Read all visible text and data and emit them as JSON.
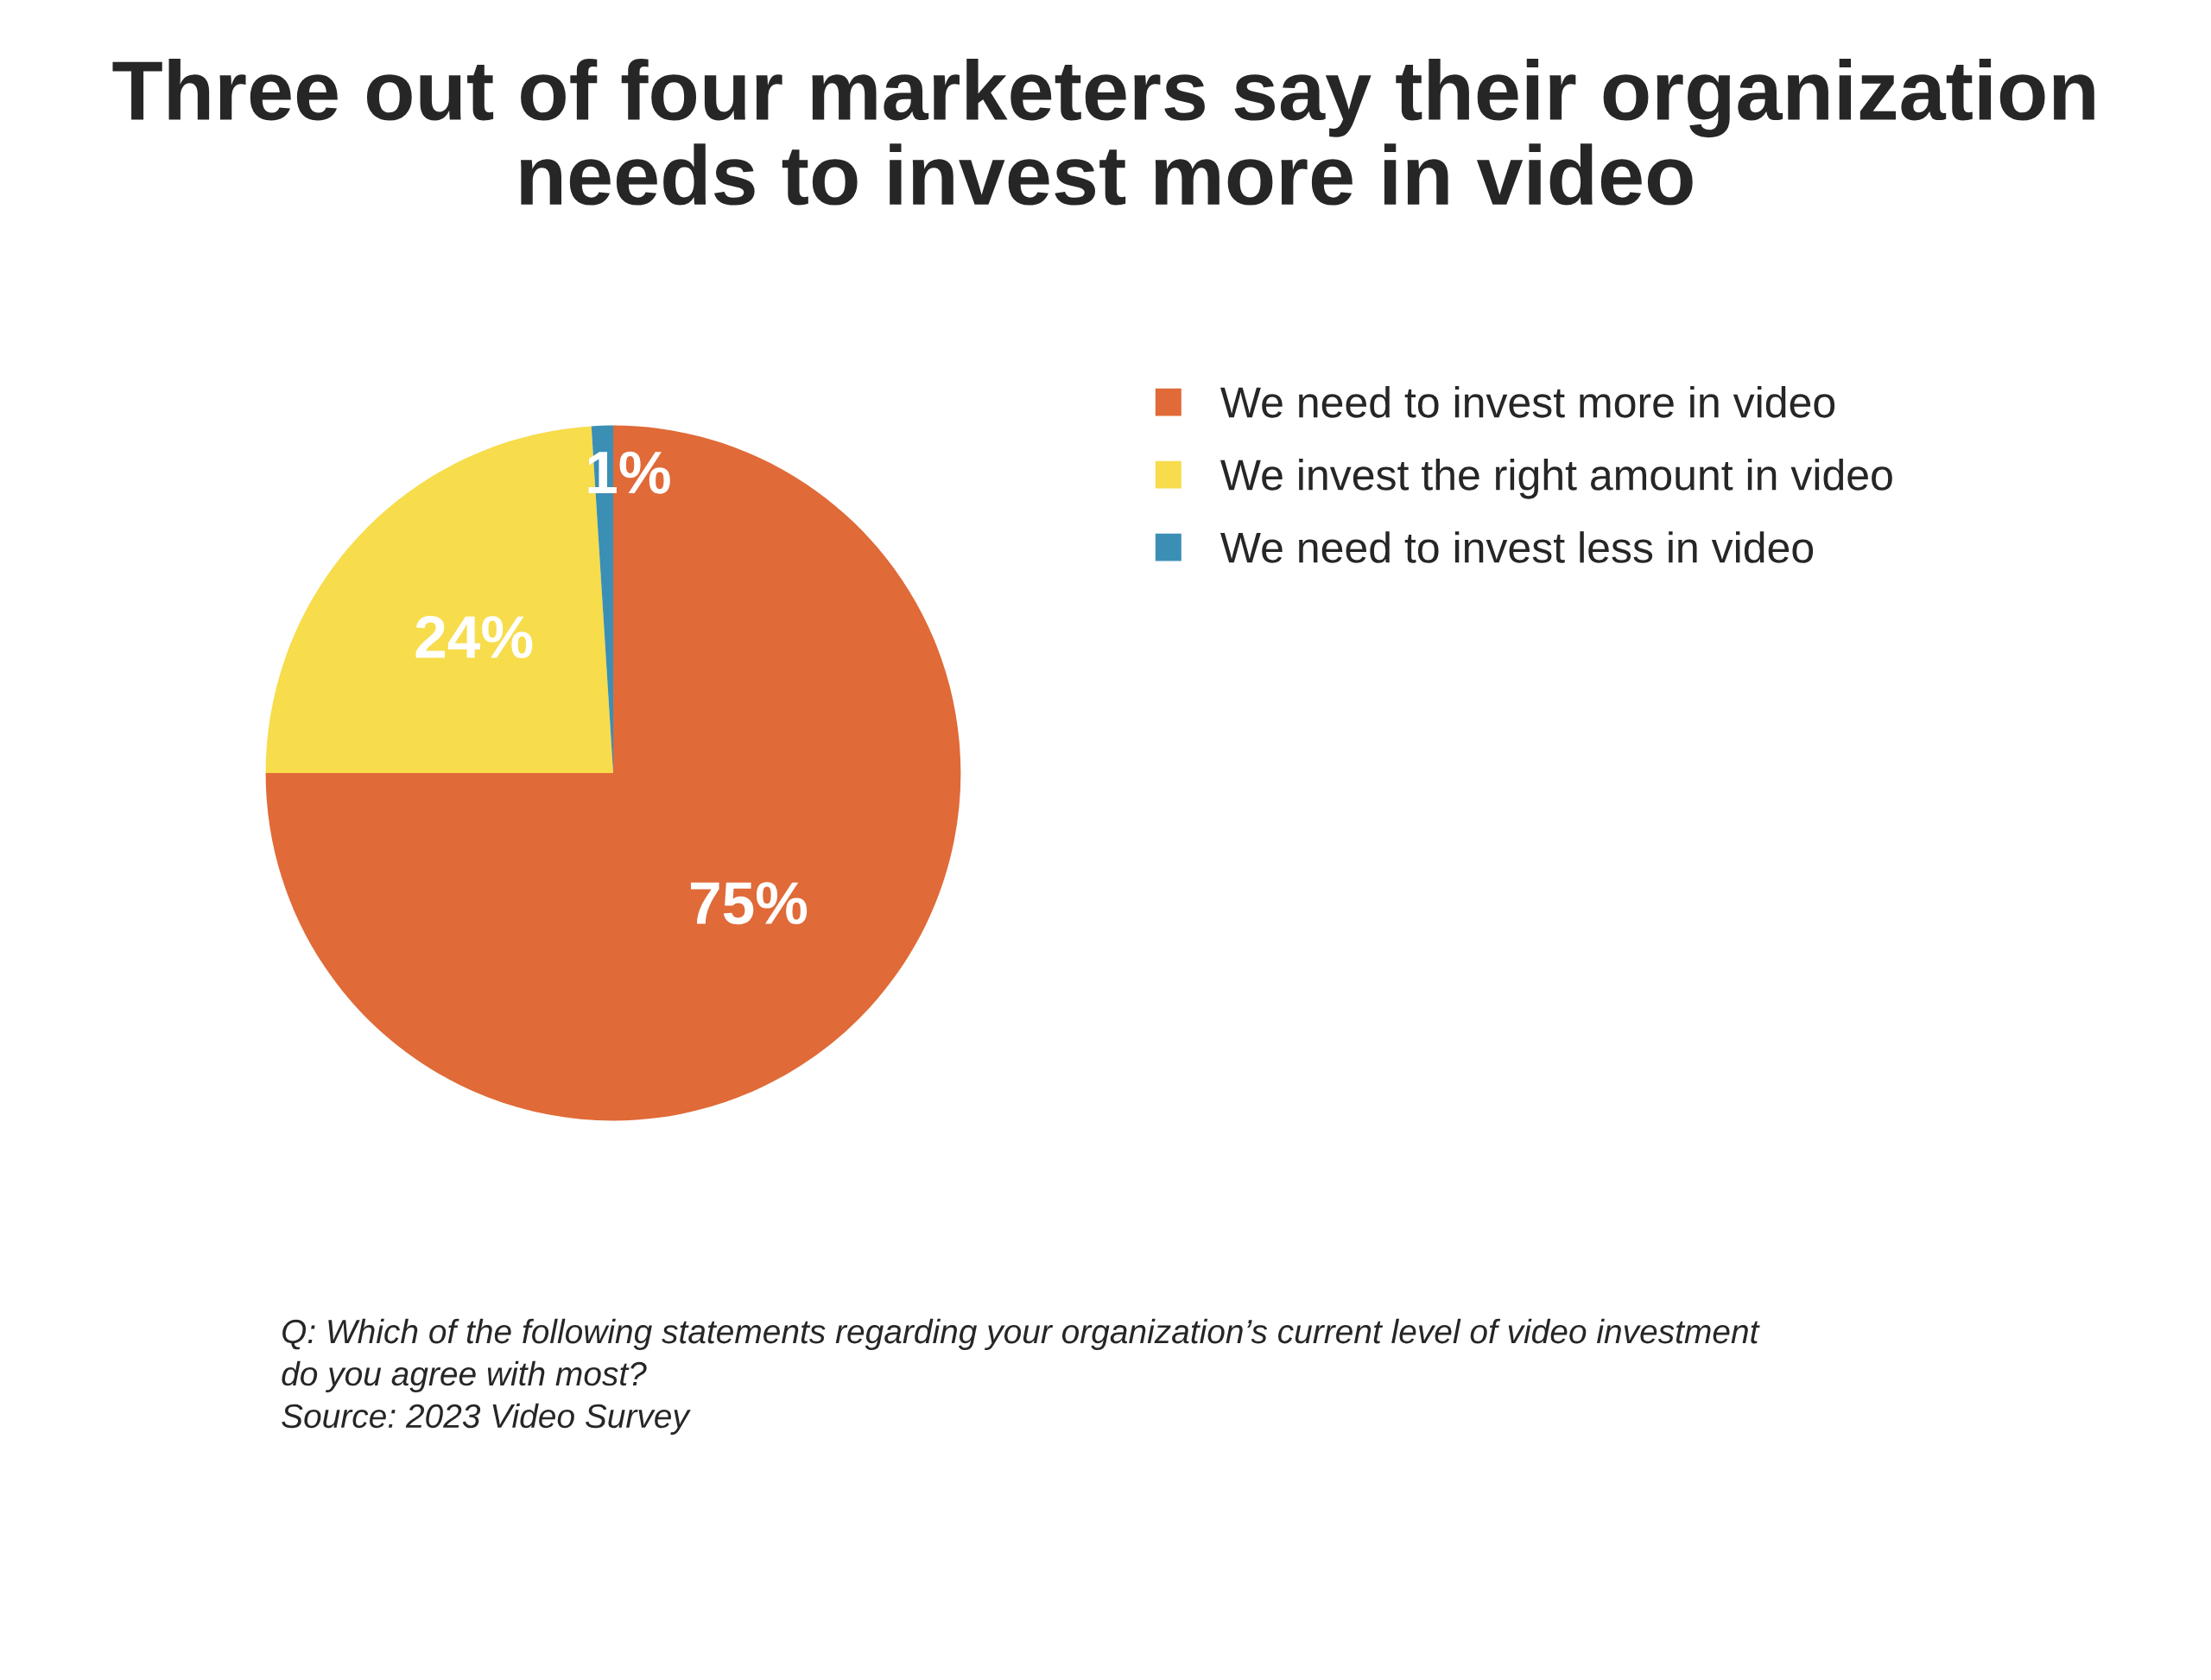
{
  "chart_data": {
    "type": "pie",
    "title": "Three out of four marketers say their organization\nneeds to invest more in video",
    "categories": [
      "We need to invest more in video",
      "We invest the right amount in video",
      "We need to invest less in video"
    ],
    "values": [
      75,
      24,
      1
    ],
    "colors": [
      "#e06a38",
      "#f7dc4c",
      "#3b8fb5"
    ],
    "value_labels": [
      "75%",
      "24%",
      "1%"
    ],
    "legend": "right",
    "annotations": [
      "Q: Which of the following statements regarding your organization’s current level of video investment\ndo you agree with most?\nSource: 2023 Video Survey"
    ]
  }
}
